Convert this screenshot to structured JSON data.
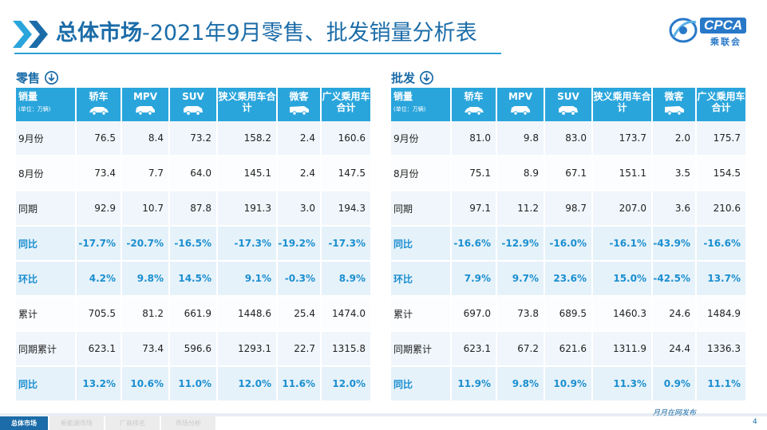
{
  "title": {
    "main": "总体市场",
    "sub": "-2021年9月零售、批发销量分析表"
  },
  "logo": {
    "text": "CPCA",
    "sub": "乘联会"
  },
  "colors": {
    "accent": "#2aa5dc",
    "title": "#1b6ca8",
    "percent": "#1b8fd0"
  },
  "headers": {
    "first": "销量",
    "unit": "(单位：万辆)",
    "cols": [
      "轿车",
      "MPV",
      "SUV",
      "狭义乘用车合计",
      "微客",
      "广义乘用车合计"
    ]
  },
  "retail": {
    "label": "零售",
    "icon": "down-arrow-circle-icon",
    "rows": [
      {
        "name": "9月份",
        "type": "normal",
        "values": [
          "76.5",
          "8.4",
          "73.2",
          "158.2",
          "2.4",
          "160.6"
        ]
      },
      {
        "name": "8月份",
        "type": "normal",
        "values": [
          "73.4",
          "7.7",
          "64.0",
          "145.1",
          "2.4",
          "147.5"
        ]
      },
      {
        "name": "同期",
        "type": "normal",
        "values": [
          "92.9",
          "10.7",
          "87.8",
          "191.3",
          "3.0",
          "194.3"
        ]
      },
      {
        "name": "同比",
        "type": "pct",
        "values": [
          "-17.7%",
          "-20.7%",
          "-16.5%",
          "-17.3%",
          "-19.2%",
          "-17.3%"
        ]
      },
      {
        "name": "环比",
        "type": "pct",
        "values": [
          "4.2%",
          "9.8%",
          "14.5%",
          "9.1%",
          "-0.3%",
          "8.9%"
        ]
      },
      {
        "name": "累计",
        "type": "normal",
        "values": [
          "705.5",
          "81.2",
          "661.9",
          "1448.6",
          "25.4",
          "1474.0"
        ]
      },
      {
        "name": "同期累计",
        "type": "normal",
        "values": [
          "623.1",
          "73.4",
          "596.6",
          "1293.1",
          "22.7",
          "1315.8"
        ]
      },
      {
        "name": "同比",
        "type": "pct",
        "values": [
          "13.2%",
          "10.6%",
          "11.0%",
          "12.0%",
          "11.6%",
          "12.0%"
        ]
      }
    ]
  },
  "wholesale": {
    "label": "批发",
    "icon": "down-arrow-circle-icon",
    "rows": [
      {
        "name": "9月份",
        "type": "normal",
        "values": [
          "81.0",
          "9.8",
          "83.0",
          "173.7",
          "2.0",
          "175.7"
        ]
      },
      {
        "name": "8月份",
        "type": "normal",
        "values": [
          "75.1",
          "8.9",
          "67.1",
          "151.1",
          "3.5",
          "154.5"
        ]
      },
      {
        "name": "同期",
        "type": "normal",
        "values": [
          "97.1",
          "11.2",
          "98.7",
          "207.0",
          "3.6",
          "210.6"
        ]
      },
      {
        "name": "同比",
        "type": "pct",
        "values": [
          "-16.6%",
          "-12.9%",
          "-16.0%",
          "-16.1%",
          "-43.9%",
          "-16.6%"
        ]
      },
      {
        "name": "环比",
        "type": "pct",
        "values": [
          "7.9%",
          "9.7%",
          "23.6%",
          "15.0%",
          "-42.5%",
          "13.7%"
        ]
      },
      {
        "name": "累计",
        "type": "normal",
        "values": [
          "697.0",
          "73.8",
          "689.5",
          "1460.3",
          "24.6",
          "1484.9"
        ]
      },
      {
        "name": "同期累计",
        "type": "normal",
        "values": [
          "623.1",
          "67.2",
          "621.6",
          "1311.9",
          "24.4",
          "1336.3"
        ]
      },
      {
        "name": "同比",
        "type": "pct",
        "values": [
          "11.9%",
          "9.8%",
          "10.9%",
          "11.3%",
          "0.9%",
          "11.1%"
        ]
      }
    ]
  },
  "footer": {
    "tabs": [
      "总体市场",
      "新能源市场",
      "厂商排名",
      "市场分析"
    ],
    "active": 0,
    "slogan": "月月在网发布",
    "page": "4"
  }
}
